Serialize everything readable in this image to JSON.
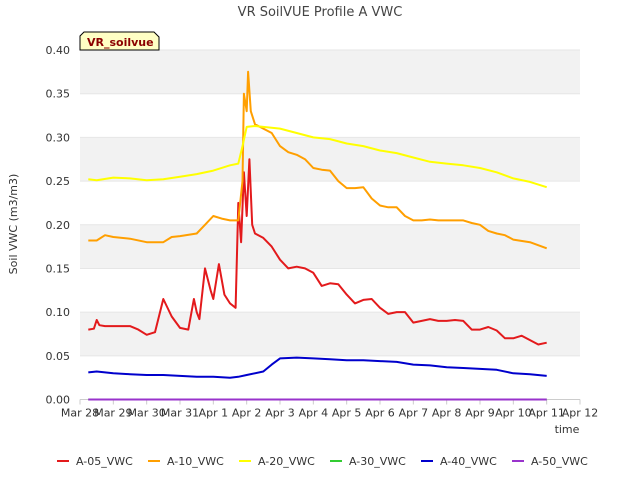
{
  "chart_data": {
    "type": "line",
    "title": "VR SoilVUE Profile A VWC",
    "xlabel": "time",
    "ylabel": "Soil VWC (m3/m3)",
    "site_label": "VR_soilvue",
    "x_unit": "date (2024 calendar days, fractional)",
    "xlim": [
      "Mar 28",
      "Apr 12"
    ],
    "x_ticks": [
      "Mar 28",
      "Mar 29",
      "Mar 30",
      "Mar 31",
      "Apr 1",
      "Apr 2",
      "Apr 3",
      "Apr 4",
      "Apr 5",
      "Apr 6",
      "Apr 7",
      "Apr 8",
      "Apr 9",
      "Apr 10",
      "Apr 11",
      "Apr 12"
    ],
    "ylim": [
      0.0,
      0.4
    ],
    "y_ticks": [
      "0.00",
      "0.05",
      "0.10",
      "0.15",
      "0.20",
      "0.25",
      "0.30",
      "0.35",
      "0.40"
    ],
    "grid": "horizontal bands",
    "legend_position": "bottom",
    "series": [
      {
        "name": "A-05_VWC",
        "color": "#e31a1c",
        "x": [
          "Mar 28 06:00",
          "Mar 28 10:00",
          "Mar 28 12:00",
          "Mar 28 14:00",
          "Mar 28 18:00",
          "Mar 29 00:00",
          "Mar 29 12:00",
          "Mar 29 18:00",
          "Mar 30 00:00",
          "Mar 30 06:00",
          "Mar 30 12:00",
          "Mar 30 18:00",
          "Mar 31 00:00",
          "Mar 31 06:00",
          "Mar 31 10:00",
          "Mar 31 12:00",
          "Mar 31 14:00",
          "Mar 31 18:00",
          "Mar 31 22:00",
          "Apr 1 00:00",
          "Apr 1 04:00",
          "Apr 1 08:00",
          "Apr 1 12:00",
          "Apr 1 16:00",
          "Apr 1 18:00",
          "Apr 1 20:00",
          "Apr 1 22:00",
          "Apr 2 00:00",
          "Apr 2 02:00",
          "Apr 2 04:00",
          "Apr 2 06:00",
          "Apr 2 12:00",
          "Apr 2 18:00",
          "Apr 3 00:00",
          "Apr 3 06:00",
          "Apr 3 12:00",
          "Apr 3 18:00",
          "Apr 4 00:00",
          "Apr 4 06:00",
          "Apr 4 12:00",
          "Apr 4 18:00",
          "Apr 5 00:00",
          "Apr 5 06:00",
          "Apr 5 12:00",
          "Apr 5 18:00",
          "Apr 6 00:00",
          "Apr 6 06:00",
          "Apr 6 12:00",
          "Apr 6 18:00",
          "Apr 7 00:00",
          "Apr 7 06:00",
          "Apr 7 12:00",
          "Apr 7 18:00",
          "Apr 8 00:00",
          "Apr 8 06:00",
          "Apr 8 12:00",
          "Apr 8 18:00",
          "Apr 9 00:00",
          "Apr 9 06:00",
          "Apr 9 12:00",
          "Apr 9 18:00",
          "Apr 10 00:00",
          "Apr 10 06:00",
          "Apr 10 12:00",
          "Apr 10 18:00",
          "Apr 11 00:00"
        ],
        "y": [
          0.08,
          0.081,
          0.091,
          0.085,
          0.084,
          0.084,
          0.084,
          0.08,
          0.074,
          0.077,
          0.115,
          0.095,
          0.082,
          0.08,
          0.115,
          0.1,
          0.092,
          0.15,
          0.125,
          0.115,
          0.155,
          0.12,
          0.11,
          0.105,
          0.225,
          0.18,
          0.26,
          0.21,
          0.275,
          0.2,
          0.19,
          0.185,
          0.175,
          0.16,
          0.15,
          0.152,
          0.15,
          0.145,
          0.13,
          0.133,
          0.132,
          0.12,
          0.11,
          0.114,
          0.115,
          0.105,
          0.098,
          0.1,
          0.1,
          0.088,
          0.09,
          0.092,
          0.09,
          0.09,
          0.091,
          0.09,
          0.08,
          0.08,
          0.083,
          0.079,
          0.07,
          0.07,
          0.073,
          0.068,
          0.063,
          0.065
        ]
      },
      {
        "name": "A-10_VWC",
        "color": "#ff9f00",
        "x": [
          "Mar 28 06:00",
          "Mar 28 12:00",
          "Mar 28 18:00",
          "Mar 29 00:00",
          "Mar 29 12:00",
          "Mar 30 00:00",
          "Mar 30 12:00",
          "Mar 30 18:00",
          "Mar 31 00:00",
          "Mar 31 12:00",
          "Mar 31 18:00",
          "Apr 1 00:00",
          "Apr 1 06:00",
          "Apr 1 12:00",
          "Apr 1 18:00",
          "Apr 1 21:00",
          "Apr 1 22:00",
          "Apr 2 00:00",
          "Apr 2 01:00",
          "Apr 2 03:00",
          "Apr 2 06:00",
          "Apr 2 12:00",
          "Apr 2 18:00",
          "Apr 3 00:00",
          "Apr 3 06:00",
          "Apr 3 12:00",
          "Apr 3 18:00",
          "Apr 4 00:00",
          "Apr 4 06:00",
          "Apr 4 12:00",
          "Apr 4 18:00",
          "Apr 5 00:00",
          "Apr 5 06:00",
          "Apr 5 12:00",
          "Apr 5 18:00",
          "Apr 6 00:00",
          "Apr 6 06:00",
          "Apr 6 12:00",
          "Apr 6 18:00",
          "Apr 7 00:00",
          "Apr 7 06:00",
          "Apr 7 12:00",
          "Apr 7 18:00",
          "Apr 8 00:00",
          "Apr 8 12:00",
          "Apr 8 18:00",
          "Apr 9 00:00",
          "Apr 9 06:00",
          "Apr 9 12:00",
          "Apr 9 18:00",
          "Apr 10 00:00",
          "Apr 10 12:00",
          "Apr 11 00:00"
        ],
        "y": [
          0.182,
          0.182,
          0.188,
          0.186,
          0.184,
          0.18,
          0.18,
          0.186,
          0.187,
          0.19,
          0.2,
          0.21,
          0.207,
          0.205,
          0.205,
          0.25,
          0.35,
          0.33,
          0.375,
          0.33,
          0.315,
          0.31,
          0.305,
          0.29,
          0.283,
          0.28,
          0.275,
          0.265,
          0.263,
          0.262,
          0.25,
          0.242,
          0.242,
          0.243,
          0.23,
          0.222,
          0.22,
          0.22,
          0.21,
          0.205,
          0.205,
          0.206,
          0.205,
          0.205,
          0.205,
          0.202,
          0.2,
          0.193,
          0.19,
          0.188,
          0.183,
          0.18,
          0.173
        ]
      },
      {
        "name": "A-20_VWC",
        "color": "#ffff00",
        "x": [
          "Mar 28 06:00",
          "Mar 28 12:00",
          "Mar 29 00:00",
          "Mar 29 12:00",
          "Mar 30 00:00",
          "Mar 30 12:00",
          "Mar 31 00:00",
          "Mar 31 12:00",
          "Apr 1 00:00",
          "Apr 1 12:00",
          "Apr 1 18:00",
          "Apr 1 21:00",
          "Apr 2 00:00",
          "Apr 2 06:00",
          "Apr 2 12:00",
          "Apr 3 00:00",
          "Apr 3 12:00",
          "Apr 4 00:00",
          "Apr 4 12:00",
          "Apr 5 00:00",
          "Apr 5 12:00",
          "Apr 6 00:00",
          "Apr 6 12:00",
          "Apr 7 00:00",
          "Apr 7 12:00",
          "Apr 8 00:00",
          "Apr 8 12:00",
          "Apr 9 00:00",
          "Apr 9 12:00",
          "Apr 10 00:00",
          "Apr 10 12:00",
          "Apr 11 00:00"
        ],
        "y": [
          0.252,
          0.251,
          0.254,
          0.253,
          0.251,
          0.252,
          0.255,
          0.258,
          0.262,
          0.268,
          0.27,
          0.29,
          0.312,
          0.313,
          0.312,
          0.31,
          0.305,
          0.3,
          0.298,
          0.293,
          0.29,
          0.285,
          0.282,
          0.277,
          0.272,
          0.27,
          0.268,
          0.265,
          0.26,
          0.253,
          0.249,
          0.243
        ]
      },
      {
        "name": "A-30_VWC",
        "color": "#33cc33",
        "x": [
          "Mar 28 06:00",
          "Apr 11 00:00"
        ],
        "y": [
          0.0,
          0.0
        ]
      },
      {
        "name": "A-40_VWC",
        "color": "#0000cc",
        "x": [
          "Mar 28 06:00",
          "Mar 28 12:00",
          "Mar 29 00:00",
          "Mar 29 12:00",
          "Mar 30 00:00",
          "Mar 30 12:00",
          "Mar 31 00:00",
          "Mar 31 12:00",
          "Apr 1 00:00",
          "Apr 1 12:00",
          "Apr 1 18:00",
          "Apr 2 00:00",
          "Apr 2 12:00",
          "Apr 2 18:00",
          "Apr 3 00:00",
          "Apr 3 12:00",
          "Apr 4 00:00",
          "Apr 4 12:00",
          "Apr 5 00:00",
          "Apr 5 12:00",
          "Apr 6 00:00",
          "Apr 6 12:00",
          "Apr 7 00:00",
          "Apr 7 12:00",
          "Apr 8 00:00",
          "Apr 8 12:00",
          "Apr 9 00:00",
          "Apr 9 12:00",
          "Apr 10 00:00",
          "Apr 10 12:00",
          "Apr 11 00:00"
        ],
        "y": [
          0.031,
          0.032,
          0.03,
          0.029,
          0.028,
          0.028,
          0.027,
          0.026,
          0.026,
          0.025,
          0.026,
          0.028,
          0.032,
          0.04,
          0.047,
          0.048,
          0.047,
          0.046,
          0.045,
          0.045,
          0.044,
          0.043,
          0.04,
          0.039,
          0.037,
          0.036,
          0.035,
          0.034,
          0.03,
          0.029,
          0.027
        ]
      },
      {
        "name": "A-50_VWC",
        "color": "#9933cc",
        "x": [
          "Mar 28 06:00",
          "Apr 11 00:00"
        ],
        "y": [
          0.0,
          0.0
        ]
      }
    ]
  }
}
